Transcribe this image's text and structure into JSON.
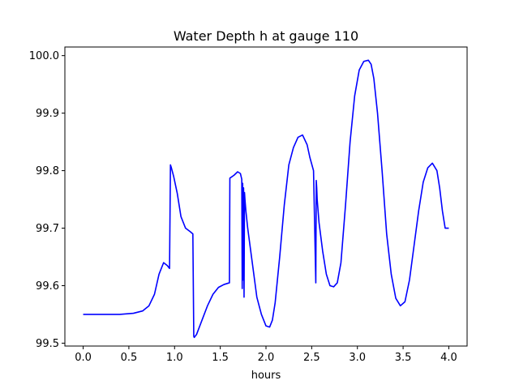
{
  "chart_data": {
    "type": "line",
    "title": "Water Depth h at gauge 110",
    "xlabel": "hours",
    "ylabel": "",
    "xlim": [
      -0.2,
      4.2
    ],
    "ylim": [
      99.495,
      100.015
    ],
    "xticks": [
      0.0,
      0.5,
      1.0,
      1.5,
      2.0,
      2.5,
      3.0,
      3.5,
      4.0
    ],
    "xtick_labels": [
      "0.0",
      "0.5",
      "1.0",
      "1.5",
      "2.0",
      "2.5",
      "3.0",
      "3.5",
      "4.0"
    ],
    "yticks": [
      99.5,
      99.6,
      99.7,
      99.8,
      99.9,
      100.0
    ],
    "ytick_labels": [
      "99.5",
      "99.6",
      "99.7",
      "99.8",
      "99.9",
      "100.0"
    ],
    "grid": false,
    "series": [
      {
        "color": "#0000ff",
        "x": [
          0.0,
          0.2,
          0.4,
          0.55,
          0.65,
          0.72,
          0.78,
          0.83,
          0.88,
          0.92,
          0.945,
          0.955,
          0.965,
          0.99,
          1.03,
          1.07,
          1.12,
          1.17,
          1.2,
          1.21,
          1.215,
          1.24,
          1.3,
          1.36,
          1.42,
          1.48,
          1.54,
          1.6,
          1.605,
          1.65,
          1.69,
          1.72,
          1.735,
          1.74,
          1.745,
          1.75,
          1.755,
          1.76,
          1.765,
          1.77,
          1.775,
          1.78,
          1.8,
          1.85,
          1.9,
          1.95,
          2.0,
          2.04,
          2.07,
          2.1,
          2.15,
          2.2,
          2.25,
          2.3,
          2.35,
          2.4,
          2.45,
          2.48,
          2.52,
          2.545,
          2.55,
          2.555,
          2.56,
          2.58,
          2.62,
          2.66,
          2.7,
          2.74,
          2.78,
          2.82,
          2.87,
          2.92,
          2.97,
          3.02,
          3.07,
          3.12,
          3.15,
          3.18,
          3.22,
          3.27,
          3.32,
          3.37,
          3.42,
          3.47,
          3.52,
          3.57,
          3.62,
          3.67,
          3.72,
          3.77,
          3.82,
          3.87,
          3.9,
          3.93,
          3.96,
          4.0
        ],
        "values": [
          99.55,
          99.55,
          99.55,
          99.552,
          99.556,
          99.565,
          99.585,
          99.62,
          99.64,
          99.635,
          99.63,
          99.81,
          99.805,
          99.79,
          99.76,
          99.72,
          99.7,
          99.694,
          99.69,
          99.512,
          99.51,
          99.515,
          99.54,
          99.565,
          99.585,
          99.597,
          99.602,
          99.605,
          99.787,
          99.792,
          99.798,
          99.795,
          99.785,
          99.595,
          99.778,
          99.61,
          99.77,
          99.58,
          99.762,
          99.75,
          99.74,
          99.73,
          99.7,
          99.64,
          99.58,
          99.55,
          99.53,
          99.528,
          99.54,
          99.57,
          99.65,
          99.74,
          99.81,
          99.84,
          99.858,
          99.862,
          99.845,
          99.823,
          99.8,
          99.605,
          99.783,
          99.77,
          99.75,
          99.71,
          99.66,
          99.62,
          99.6,
          99.598,
          99.605,
          99.64,
          99.74,
          99.85,
          99.93,
          99.975,
          99.99,
          99.992,
          99.985,
          99.96,
          99.9,
          99.8,
          99.69,
          99.62,
          99.578,
          99.565,
          99.572,
          99.61,
          99.67,
          99.73,
          99.78,
          99.805,
          99.813,
          99.8,
          99.77,
          99.73,
          99.7,
          99.7
        ]
      }
    ]
  }
}
